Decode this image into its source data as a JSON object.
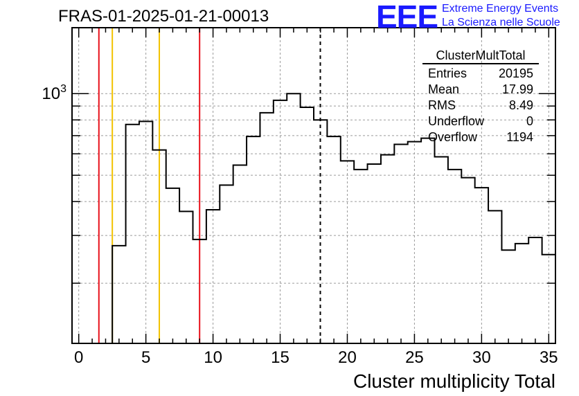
{
  "title": "FRAS-01-2025-01-21-00013",
  "logo": {
    "text": "EEE",
    "line1": "Extreme Energy Events",
    "line2": "La Scienza nelle Scuole",
    "color": "#1a1aff"
  },
  "stats": {
    "name": "ClusterMultTotal",
    "rows": [
      {
        "label": "Entries",
        "value": "20195"
      },
      {
        "label": "Mean",
        "value": "17.99"
      },
      {
        "label": "RMS",
        "value": "8.49"
      },
      {
        "label": "Underflow",
        "value": "0"
      },
      {
        "label": "Overflow",
        "value": "1194"
      }
    ]
  },
  "chart_data": {
    "type": "histogram",
    "title": "FRAS-01-2025-01-21-00013",
    "xlabel": "Cluster multiplicity Total",
    "ylabel": "",
    "xlim": [
      -0.5,
      35.5
    ],
    "ylim": [
      120,
      1750
    ],
    "yscale": "log",
    "xticks": [
      0,
      5,
      10,
      15,
      20,
      25,
      30,
      35
    ],
    "yticks": [
      {
        "value": 1000,
        "label": "10",
        "exp": "3"
      }
    ],
    "grid": true,
    "bin_edges": [
      2.5,
      3.5,
      4.5,
      5.5,
      6.5,
      7.5,
      8.5,
      9.5,
      10.5,
      11.5,
      12.5,
      13.5,
      14.5,
      15.5,
      16.5,
      17.5,
      18.5,
      19.5,
      20.5,
      21.5,
      22.5,
      23.5,
      24.5,
      25.5,
      26.5,
      27.5,
      28.5,
      29.5,
      30.5,
      31.5,
      32.5,
      33.5,
      34.5,
      35.5
    ],
    "values": [
      275,
      770,
      790,
      620,
      448,
      368,
      290,
      373,
      460,
      545,
      695,
      850,
      945,
      1000,
      890,
      800,
      695,
      565,
      525,
      550,
      595,
      650,
      665,
      685,
      585,
      525,
      490,
      450,
      370,
      265,
      280,
      295,
      255
    ],
    "lines": [
      {
        "x": 1.5,
        "color": "#e8101a",
        "style": "solid"
      },
      {
        "x": 2.5,
        "color": "#f2c200",
        "style": "solid"
      },
      {
        "x": 6.0,
        "color": "#f2c200",
        "style": "solid"
      },
      {
        "x": 9.0,
        "color": "#e8101a",
        "style": "solid"
      },
      {
        "x": 17.99,
        "color": "#000000",
        "style": "dashed"
      }
    ],
    "stats_box": {
      "name": "ClusterMultTotal",
      "entries": 20195,
      "mean": 17.99,
      "rms": 8.49,
      "underflow": 0,
      "overflow": 1194
    }
  }
}
